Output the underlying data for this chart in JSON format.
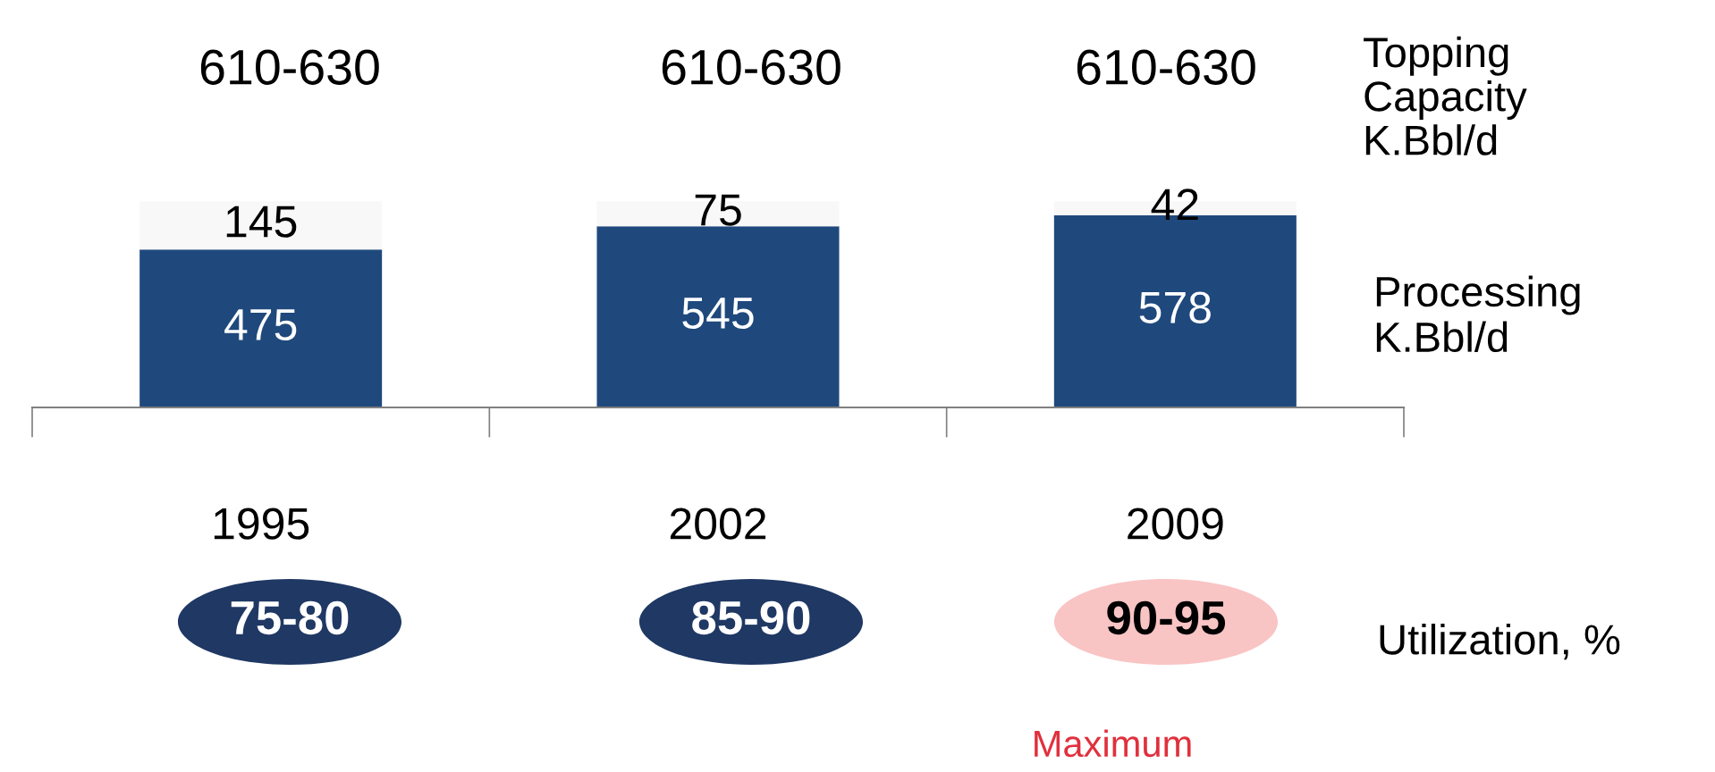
{
  "chart_data": {
    "type": "bar",
    "stacked": true,
    "data_labels": true,
    "categories": [
      "1995",
      "2002",
      "2009"
    ],
    "series": [
      {
        "color": "#1f497d",
        "values": [
          475,
          545,
          578
        ]
      },
      {
        "color": "#f8f8f8",
        "values": [
          145,
          75,
          42
        ]
      }
    ],
    "annotations": [
      "610-630",
      "610-630",
      "610-630",
      "Topping\nCapacity\nK.Bbl/d",
      "Processing\nK.Bbl/d",
      "75-80",
      "85-90",
      "90-95",
      "Utilization, %",
      "Maximum"
    ]
  }
}
